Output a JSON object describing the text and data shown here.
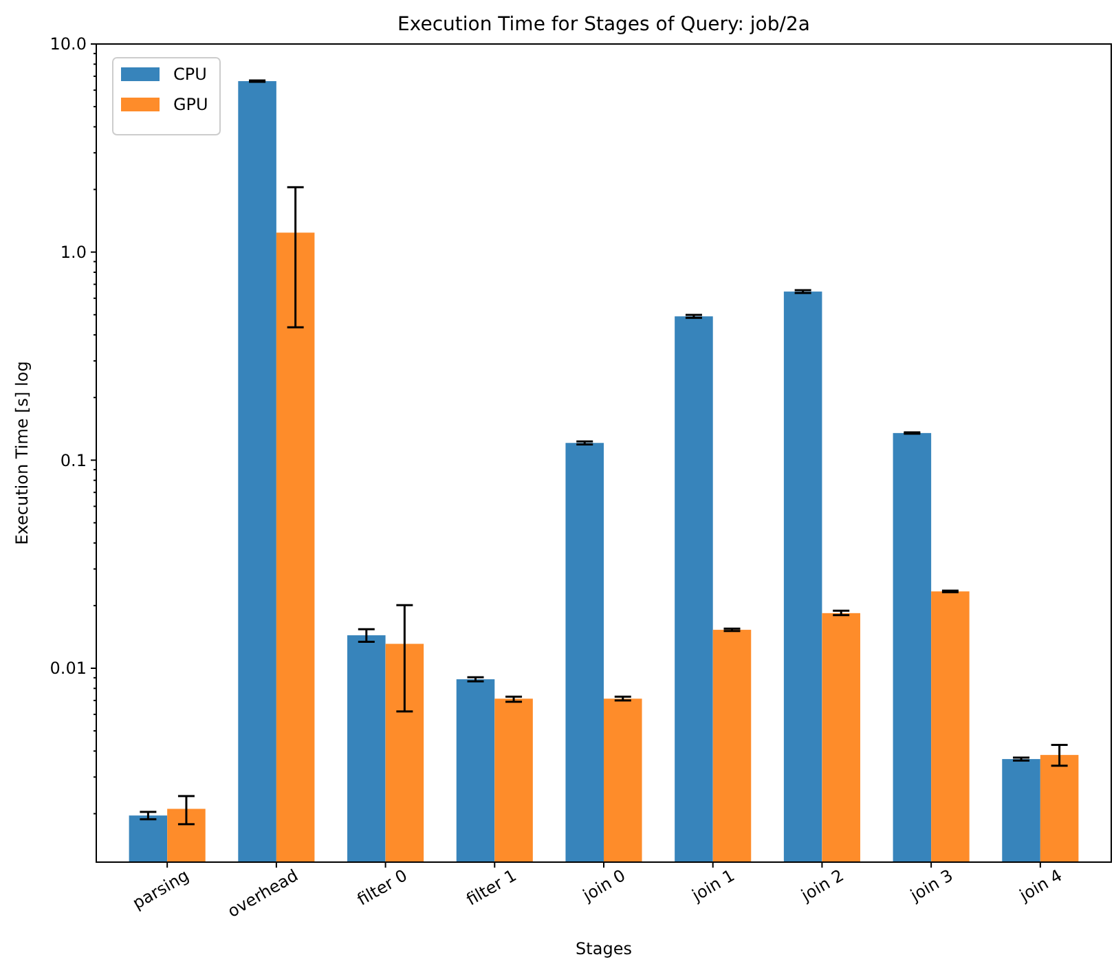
{
  "chart_data": {
    "type": "bar",
    "title": "Execution Time for Stages of Query: job/2a",
    "xlabel": "Stages",
    "ylabel": "Execution Time [s] log",
    "categories": [
      "parsing",
      "overhead",
      "filter 0",
      "filter 1",
      "join 0",
      "join 1",
      "join 2",
      "join 3",
      "join 4"
    ],
    "series": [
      {
        "name": "CPU",
        "color": "#3784bb",
        "values": [
          0.00196,
          6.63,
          0.0144,
          0.00885,
          0.121,
          0.491,
          0.646,
          0.135,
          0.00366
        ],
        "errors": [
          8e-05,
          0.05,
          0.001,
          0.0002,
          0.002,
          0.008,
          0.01,
          0.001,
          6e-05
        ]
      },
      {
        "name": "GPU",
        "color": "#fe8c2a",
        "values": [
          0.00211,
          1.24,
          0.0131,
          0.00714,
          0.00714,
          0.0153,
          0.0184,
          0.0234,
          0.00383
        ],
        "errors": [
          [
            0.00178,
            0.00243
          ],
          [
            0.435,
            2.05
          ],
          [
            0.0062,
            0.0201
          ],
          [
            0.0069,
            0.0073
          ],
          [
            0.007,
            0.0073
          ],
          [
            0.0151,
            0.0155
          ],
          [
            0.018,
            0.0189
          ],
          [
            0.0232,
            0.0236
          ],
          [
            0.0034,
            0.00428
          ]
        ]
      }
    ],
    "log": "y",
    "ylim": [
      0.00117,
      10
    ],
    "yticks": [
      {
        "value": 0.002,
        "label": null
      },
      {
        "value": 0.003,
        "label": null
      },
      {
        "value": 0.004,
        "label": null
      },
      {
        "value": 0.005,
        "label": null
      },
      {
        "value": 0.006,
        "label": null
      },
      {
        "value": 0.007,
        "label": null
      },
      {
        "value": 0.008,
        "label": null
      },
      {
        "value": 0.009,
        "label": null
      },
      0.01,
      {
        "value": 0.02,
        "label": null
      },
      {
        "value": 0.03,
        "label": null
      },
      {
        "value": 0.04,
        "label": null
      },
      {
        "value": 0.05,
        "label": null
      },
      {
        "value": 0.06,
        "label": null
      },
      {
        "value": 0.07,
        "label": null
      },
      {
        "value": 0.08,
        "label": null
      },
      {
        "value": 0.09,
        "label": null
      },
      0.1,
      {
        "value": 0.2,
        "label": null
      },
      {
        "value": 0.3,
        "label": null
      },
      {
        "value": 0.4,
        "label": null
      },
      {
        "value": 0.5,
        "label": null
      },
      {
        "value": 0.6,
        "label": null
      },
      {
        "value": 0.7,
        "label": null
      },
      {
        "value": 0.8,
        "label": null
      },
      {
        "value": 0.9,
        "label": null
      },
      {
        "value": 1,
        "label": "1.0"
      },
      {
        "value": 2,
        "label": null
      },
      {
        "value": 3,
        "label": null
      },
      {
        "value": 4,
        "label": null
      },
      {
        "value": 5,
        "label": null
      },
      {
        "value": 6,
        "label": null
      },
      {
        "value": 7,
        "label": null
      },
      {
        "value": 8,
        "label": null
      },
      {
        "value": 9,
        "label": null
      },
      {
        "value": 10,
        "label": "10.0"
      }
    ],
    "legend": "top left"
  }
}
